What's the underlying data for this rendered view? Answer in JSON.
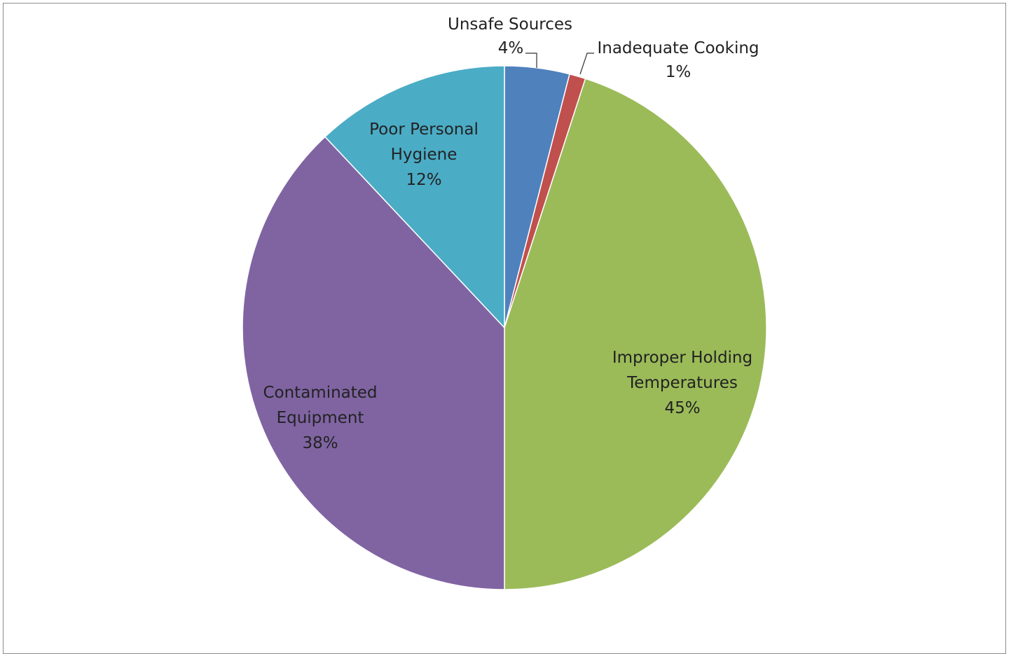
{
  "chart_data": {
    "type": "pie",
    "title": "",
    "slices": [
      {
        "name": "Unsafe Sources",
        "value": 4,
        "label": "4%",
        "color": "#4F81BD"
      },
      {
        "name": "Inadequate Cooking",
        "value": 1,
        "label": "1%",
        "color": "#C0504D"
      },
      {
        "name": "Improper Holding Temperatures",
        "value": 45,
        "label": "45%",
        "color": "#9BBB59"
      },
      {
        "name": "Contaminated Equipment",
        "value": 38,
        "label": "38%",
        "color": "#8064A2"
      },
      {
        "name": "Poor Personal Hygiene",
        "value": 12,
        "label": "12%",
        "color": "#4BACC6"
      }
    ],
    "start_angle": "12 o'clock",
    "direction": "clockwise",
    "legend": "none",
    "data_labels": "category name and percentage"
  }
}
